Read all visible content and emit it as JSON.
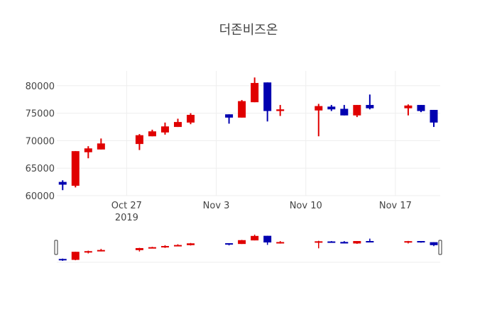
{
  "chart_data": {
    "type": "candlestick",
    "title": "더존비즈온",
    "xlabel": "",
    "ylabel": "",
    "ylim": [
      60000,
      82700
    ],
    "xlim": [
      "2019-10-21T13:00",
      "2019-11-20T12:00"
    ],
    "y_ticks": [
      60000,
      65000,
      70000,
      75000,
      80000
    ],
    "y_tick_labels": [
      "60000",
      "65000",
      "70000",
      "75000",
      "80000"
    ],
    "x_ticks": [
      "2019-10-27",
      "2019-11-03",
      "2019-11-10",
      "2019-11-17"
    ],
    "x_tick_labels": [
      "Oct 27",
      "Nov 3",
      "Nov 10",
      "Nov 17"
    ],
    "x_tick_year_label": "2019",
    "grid": true,
    "rangeslider": true,
    "increasing_color": "#e00000",
    "decreasing_color": "#0000b0",
    "candles": [
      {
        "date": "2019-10-22",
        "open": 62500,
        "high": 62800,
        "low": 61000,
        "close": 62000
      },
      {
        "date": "2019-10-23",
        "open": 61800,
        "high": 68100,
        "low": 61500,
        "close": 68100
      },
      {
        "date": "2019-10-24",
        "open": 67900,
        "high": 69000,
        "low": 66800,
        "close": 68600
      },
      {
        "date": "2019-10-25",
        "open": 68400,
        "high": 70400,
        "low": 68400,
        "close": 69500
      },
      {
        "date": "2019-10-28",
        "open": 69400,
        "high": 71200,
        "low": 68300,
        "close": 71000
      },
      {
        "date": "2019-10-29",
        "open": 70800,
        "high": 72000,
        "low": 70800,
        "close": 71700
      },
      {
        "date": "2019-10-30",
        "open": 71500,
        "high": 73300,
        "low": 71100,
        "close": 72600
      },
      {
        "date": "2019-10-31",
        "open": 72500,
        "high": 74000,
        "low": 72500,
        "close": 73400
      },
      {
        "date": "2019-11-01",
        "open": 73300,
        "high": 75000,
        "low": 73000,
        "close": 74700
      },
      {
        "date": "2019-11-04",
        "open": 74800,
        "high": 74800,
        "low": 73100,
        "close": 74200
      },
      {
        "date": "2019-11-05",
        "open": 74200,
        "high": 77400,
        "low": 74200,
        "close": 77200
      },
      {
        "date": "2019-11-06",
        "open": 77000,
        "high": 81500,
        "low": 77000,
        "close": 80500
      },
      {
        "date": "2019-11-07",
        "open": 80600,
        "high": 80600,
        "low": 73500,
        "close": 75400
      },
      {
        "date": "2019-11-08",
        "open": 75400,
        "high": 76500,
        "low": 74500,
        "close": 75700
      },
      {
        "date": "2019-11-11",
        "open": 75500,
        "high": 76700,
        "low": 70800,
        "close": 76300
      },
      {
        "date": "2019-11-12",
        "open": 76200,
        "high": 76500,
        "low": 75400,
        "close": 75700
      },
      {
        "date": "2019-11-13",
        "open": 75800,
        "high": 76500,
        "low": 74600,
        "close": 74600
      },
      {
        "date": "2019-11-14",
        "open": 74600,
        "high": 76500,
        "low": 74300,
        "close": 76500
      },
      {
        "date": "2019-11-15",
        "open": 76500,
        "high": 78400,
        "low": 75700,
        "close": 75900
      },
      {
        "date": "2019-11-18",
        "open": 75900,
        "high": 76600,
        "low": 74600,
        "close": 76400
      },
      {
        "date": "2019-11-19",
        "open": 76500,
        "high": 76500,
        "low": 75200,
        "close": 75400
      },
      {
        "date": "2019-11-20",
        "open": 75600,
        "high": 75600,
        "low": 72500,
        "close": 73300
      }
    ]
  }
}
